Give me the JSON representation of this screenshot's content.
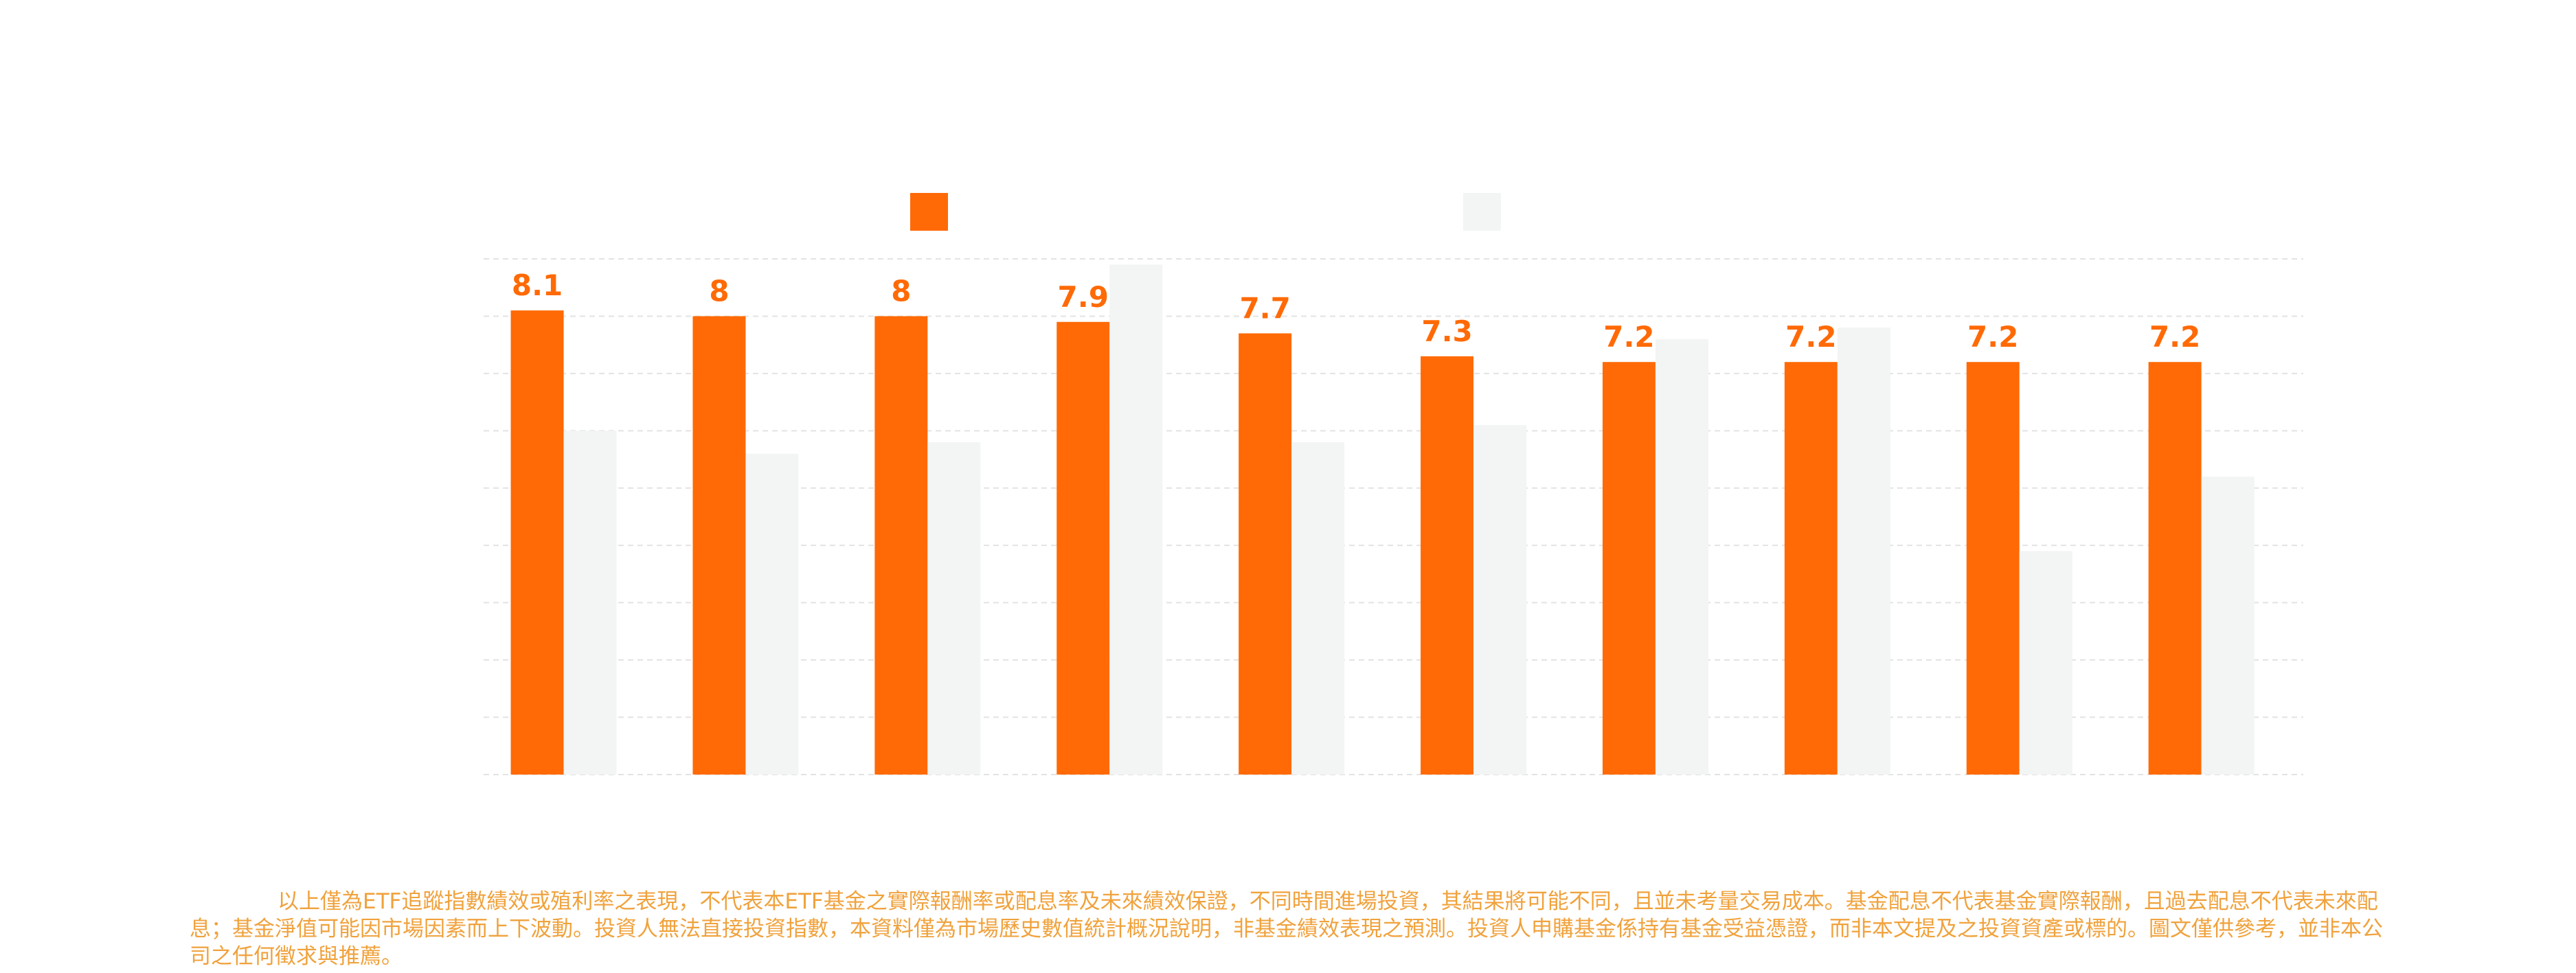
{
  "chart_data": {
    "type": "bar",
    "categories": [
      null,
      null,
      null,
      null,
      null,
      null,
      null,
      null,
      null,
      null
    ],
    "series": [
      {
        "color": "#ff6a06",
        "values": [
          8.1,
          8.0,
          8.0,
          7.9,
          7.7,
          7.3,
          7.2,
          7.2,
          7.2,
          7.2
        ]
      },
      {
        "color": "#f3f4f4",
        "values": [
          6.0,
          5.6,
          5.8,
          8.9,
          5.8,
          6.1,
          7.6,
          7.8,
          3.9,
          5.2
        ]
      }
    ],
    "ylim": [
      0,
      9
    ],
    "yticks": [
      0,
      1,
      2,
      3,
      4,
      5,
      6,
      7,
      8,
      9
    ],
    "grid": true,
    "footnote": "以上僅為ETF追蹤指數績效或殖利率之表現，不代表本ETF基金之實際報酬率或配息率及未來績效保證，不同時間進場投資，其結果將可能不同，且並未考量交易成本。基金配息不代表基金實際報酬，且過去配息不代表未來配息；基金淨值可能因市場因素而上下波動。投資人無法直接投資指數，本資料僅為市場歷史數值統計概況說明，非基金績效表現之預測。投資人申購基金係持有基金受益憑證，而非本文提及之投資資產或標的。圖文僅供參考，並非本公司之任何徵求與推薦。"
  }
}
